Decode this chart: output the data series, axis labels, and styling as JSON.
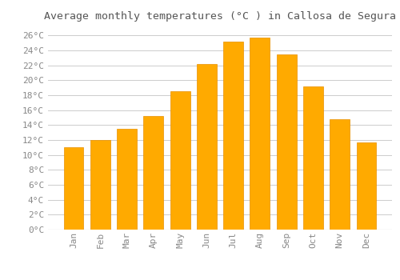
{
  "title": "Average monthly temperatures (°C ) in Callosa de Segura",
  "months": [
    "Jan",
    "Feb",
    "Mar",
    "Apr",
    "May",
    "Jun",
    "Jul",
    "Aug",
    "Sep",
    "Oct",
    "Nov",
    "Dec"
  ],
  "values": [
    11.0,
    12.0,
    13.5,
    15.2,
    18.5,
    22.2,
    25.2,
    25.7,
    23.5,
    19.2,
    14.8,
    11.7
  ],
  "bar_color": "#FFAA00",
  "bar_edge_color": "#E89000",
  "background_color": "#FFFFFF",
  "grid_color": "#CCCCCC",
  "text_color": "#888888",
  "title_color": "#555555",
  "ylim": [
    0,
    27
  ],
  "yticks": [
    0,
    2,
    4,
    6,
    8,
    10,
    12,
    14,
    16,
    18,
    20,
    22,
    24,
    26
  ],
  "title_fontsize": 9.5,
  "tick_fontsize": 8,
  "bar_width": 0.75
}
